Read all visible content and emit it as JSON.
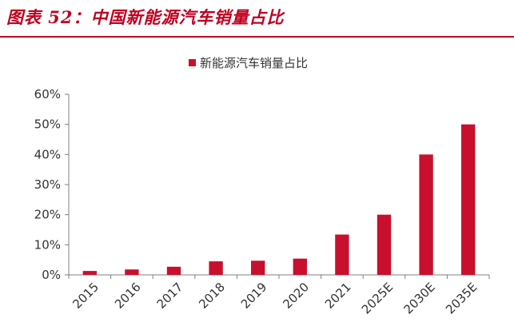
{
  "figure_title": "图表 52：中国新能源汽车销量占比",
  "colors": {
    "accent": "#c00020",
    "bar": "#c8102e",
    "axis": "#7f7f7f",
    "text": "#333333"
  },
  "chart_data": {
    "type": "bar",
    "categories": [
      "2015",
      "2016",
      "2017",
      "2018",
      "2019",
      "2020",
      "2021",
      "2025E",
      "2030E",
      "2035E"
    ],
    "series": [
      {
        "name": "新能源汽车销量占比",
        "values": [
          1.3,
          1.8,
          2.7,
          4.5,
          4.7,
          5.4,
          13.4,
          20,
          40,
          50
        ]
      }
    ],
    "y_tick_labels": [
      "0%",
      "10%",
      "20%",
      "30%",
      "40%",
      "50%",
      "60%"
    ],
    "ylim": [
      0,
      60
    ],
    "y_unit": "%",
    "legend_position": "top-center",
    "grid": false
  }
}
